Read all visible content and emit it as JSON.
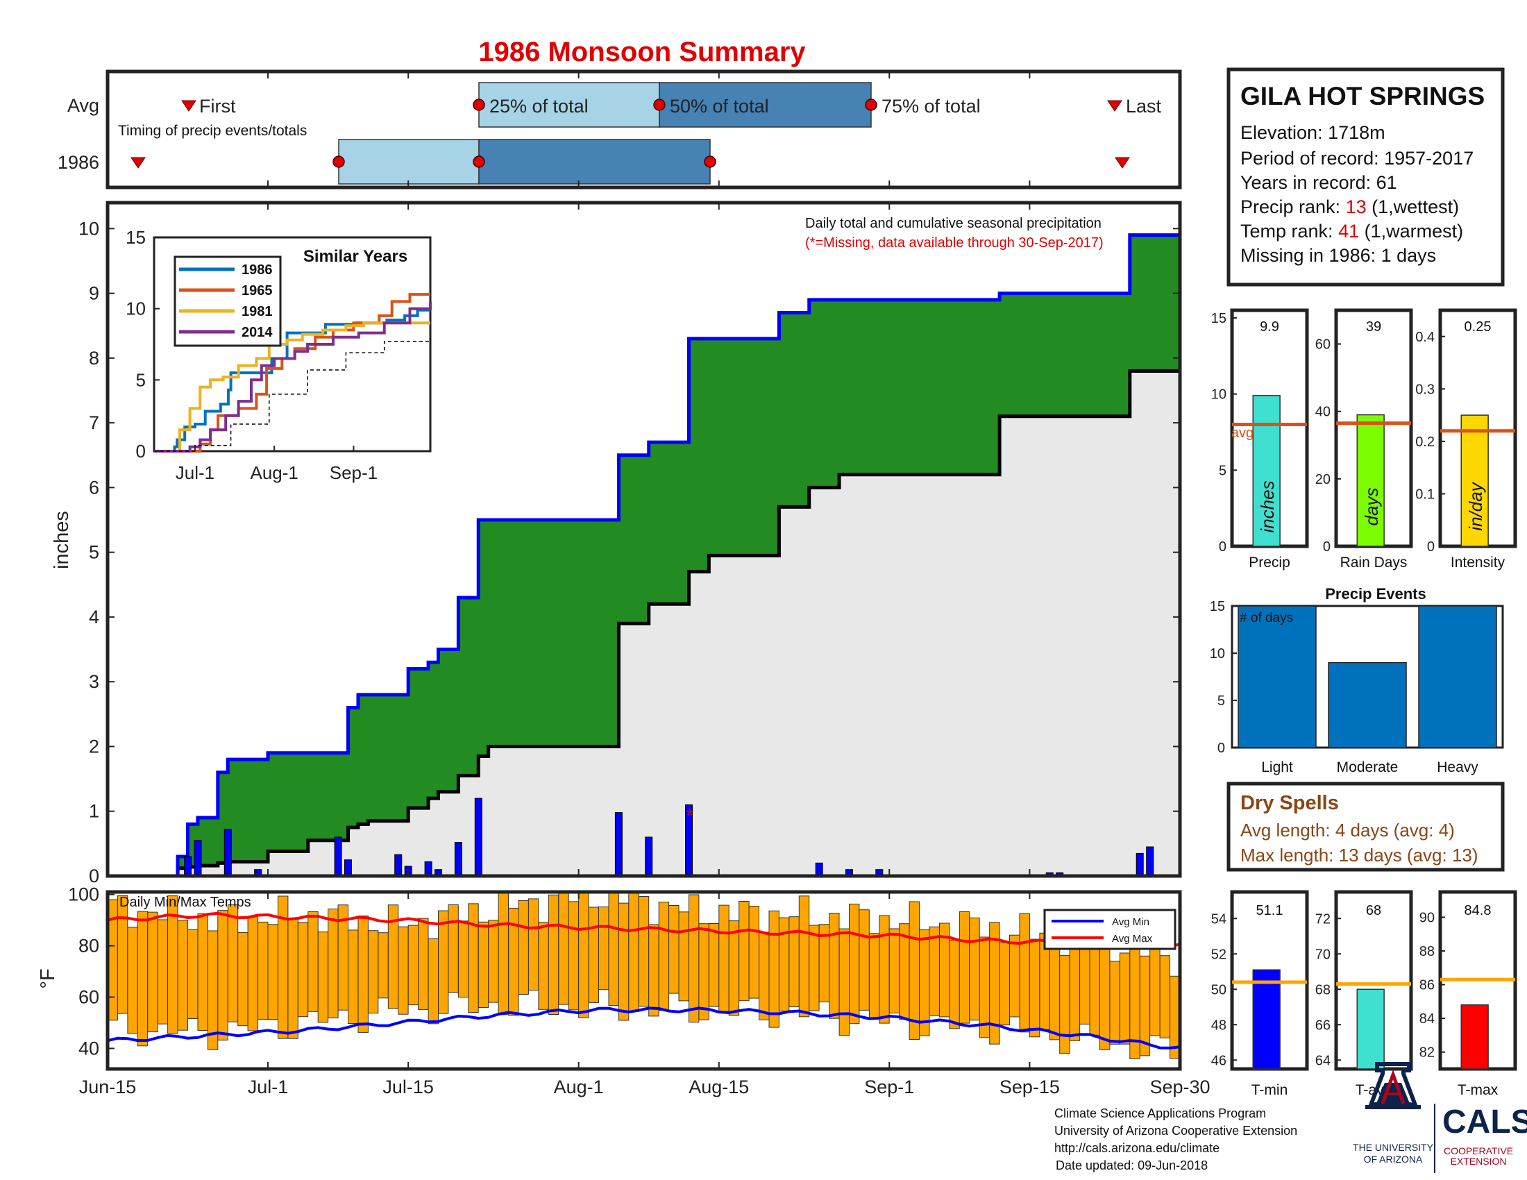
{
  "title": "1986 Monsoon Summary",
  "station": {
    "name": "GILA HOT SPRINGS",
    "elevation_label": "Elevation: 1718m",
    "period_label": "Period of record: 1957-2017",
    "years_label": "Years in record: 61",
    "precip_rank_prefix": "Precip rank: ",
    "precip_rank_value": "13",
    "precip_rank_suffix": " (1,wettest)",
    "temp_rank_prefix": "Temp rank: ",
    "temp_rank_value": "41",
    "temp_rank_suffix": " (1,warmest)",
    "missing_label": "Missing in 1986: 1 days"
  },
  "timing": {
    "row_avg": "Avg",
    "row_year": "1986",
    "first": "First",
    "last": "Last",
    "p25": "25% of total",
    "p50": "50% of total",
    "p75": "75% of total",
    "note": "Timing of precip events/totals"
  },
  "main": {
    "ylabel": "inches",
    "note": "Daily total and cumulative seasonal precipitation",
    "missing_note": "(*=Missing, data available through 30-Sep-2017)",
    "missing_marker": "*"
  },
  "inset": {
    "title": "Similar Years",
    "legend": [
      "1986",
      "1965",
      "1981",
      "2014"
    ]
  },
  "temps": {
    "ylabel": "°F",
    "title": "Daily Min/Max Temps",
    "legend_min": "Avg Min",
    "legend_max": "Avg Max"
  },
  "xticks": [
    "Jun-15",
    "Jul-1",
    "Jul-15",
    "Aug-1",
    "Aug-15",
    "Sep-1",
    "Sep-15",
    "Sep-30"
  ],
  "stat_bars": {
    "precip_label": "Precip",
    "precip_value": "9.9",
    "precip_unit": "inches",
    "days_label": "Rain Days",
    "days_value": "39",
    "days_unit": "days",
    "int_label": "Intensity",
    "int_value": "0.25",
    "int_unit": "in/day",
    "avg_label": "avg"
  },
  "events": {
    "title": "Precip Events",
    "ylabel_inside": "# of days",
    "categories": [
      "Light",
      "Moderate",
      "Heavy"
    ]
  },
  "dry_spells": {
    "title": "Dry Spells",
    "avg_length": "Avg length: 4 days (avg: 4)",
    "max_length": "Max length: 13 days (avg: 13)"
  },
  "temp_bars": {
    "tmin_label": "T-min",
    "tmin_value": "51.1",
    "tavg_label": "T-avg",
    "tavg_value": "68",
    "tmax_label": "T-max",
    "tmax_value": "84.8"
  },
  "footer": {
    "line1": "Climate Science Applications Program",
    "line2": "University of Arizona Cooperative Extension",
    "line3": "http://cals.arizona.edu/climate",
    "line4": "Date updated: 09-Jun-2018",
    "ua_line1": "THE UNIVERSITY",
    "ua_line2": "OF ARIZONA",
    "cals": "CALS",
    "cals_sub1": "COOPERATIVE",
    "cals_sub2": "EXTENSION"
  },
  "colors": {
    "title": "#e00000",
    "green": "#228b22",
    "blue": "#0000ff",
    "orange": "#ffa500",
    "avg_line": "#d95319",
    "light_blue": "#a6d3e6",
    "mid_blue": "#4682b4",
    "event_blue": "#0072bd"
  },
  "chart_data": [
    {
      "type": "line",
      "name": "cumulative precipitation 1986 vs average",
      "ylabel": "inches",
      "ylim": [
        0,
        10.4
      ],
      "x_dates": [
        "Jun-15",
        "Jun-22",
        "Jun-23",
        "Jun-24",
        "Jun-26",
        "Jun-27",
        "Jul-1",
        "Jul-5",
        "Jul-9",
        "Jul-10",
        "Jul-11",
        "Jul-15",
        "Jul-17",
        "Jul-18",
        "Jul-20",
        "Jul-22",
        "Jul-23",
        "Aug-5",
        "Aug-8",
        "Aug-12",
        "Aug-14",
        "Aug-21",
        "Aug-24",
        "Aug-27",
        "Sep-12",
        "Sep-25",
        "Sep-30"
      ],
      "series": [
        {
          "name": "1986 cumulative",
          "values": [
            0,
            0.3,
            0.8,
            0.9,
            1.6,
            1.8,
            1.9,
            1.9,
            2.6,
            2.8,
            2.8,
            3.2,
            3.3,
            3.5,
            4.3,
            5.5,
            5.5,
            6.5,
            6.7,
            8.3,
            8.3,
            8.7,
            8.9,
            8.9,
            9.0,
            9.9,
            9.9
          ]
        },
        {
          "name": "average cumulative",
          "values": [
            0,
            0.12,
            0.14,
            0.16,
            0.2,
            0.22,
            0.38,
            0.55,
            0.75,
            0.8,
            0.85,
            1.05,
            1.2,
            1.3,
            1.55,
            1.85,
            2.0,
            3.9,
            4.2,
            4.7,
            4.95,
            5.7,
            6.0,
            6.2,
            7.1,
            7.8,
            7.9
          ]
        }
      ]
    },
    {
      "type": "bar",
      "name": "daily precipitation 1986",
      "x": [
        "Jun-23",
        "Jun-24",
        "Jun-27",
        "Jun-30",
        "Jul-8",
        "Jul-9",
        "Jul-14",
        "Jul-15",
        "Jul-17",
        "Jul-18",
        "Jul-20",
        "Jul-22",
        "Aug-5",
        "Aug-8",
        "Aug-12",
        "Aug-25",
        "Aug-28",
        "Aug-31",
        "Sep-17",
        "Sep-18",
        "Sep-26",
        "Sep-27"
      ],
      "values": [
        0.3,
        0.55,
        0.72,
        0.1,
        0.6,
        0.25,
        0.33,
        0.15,
        0.22,
        0.1,
        0.52,
        1.2,
        0.98,
        0.6,
        1.1,
        0.2,
        0.1,
        0.1,
        0.05,
        0.05,
        0.35,
        0.45
      ]
    },
    {
      "type": "line",
      "name": "Similar Years",
      "xticks": [
        "Jul-1",
        "Aug-1",
        "Sep-1"
      ],
      "ylim": [
        0,
        15
      ],
      "series": [
        {
          "name": "1986",
          "x_days": [
            0,
            8,
            9,
            12,
            16,
            20,
            26,
            29,
            30,
            37,
            46,
            52,
            60,
            67,
            72,
            79,
            85,
            91,
            98,
            103,
            108
          ],
          "values": [
            0,
            0.3,
            0.8,
            1.7,
            1.9,
            2.8,
            3.3,
            4.3,
            5.5,
            5.5,
            6.5,
            8.3,
            8.3,
            8.9,
            8.9,
            9.0,
            9.0,
            9.2,
            9.5,
            9.9,
            9.9
          ]
        },
        {
          "name": "1965",
          "x_days": [
            0,
            18,
            22,
            25,
            33,
            40,
            44,
            50,
            55,
            63,
            70,
            78,
            88,
            93,
            100,
            108
          ],
          "values": [
            0,
            0.5,
            1.5,
            2.5,
            3.0,
            4.0,
            5.8,
            6.5,
            7.2,
            8.0,
            8.5,
            9.0,
            9.5,
            10.5,
            11.0,
            11.0
          ]
        },
        {
          "name": "1981",
          "x_days": [
            0,
            10,
            14,
            18,
            22,
            27,
            33,
            40,
            45,
            52,
            58,
            66,
            75,
            82,
            90,
            108
          ],
          "values": [
            0,
            1.5,
            3.0,
            4.5,
            5.0,
            5.2,
            6.0,
            6.5,
            7.5,
            7.8,
            8.2,
            8.5,
            8.8,
            9.0,
            9.0,
            9.0
          ]
        },
        {
          "name": "2014",
          "x_days": [
            0,
            14,
            18,
            22,
            28,
            33,
            38,
            42,
            47,
            55,
            60,
            70,
            80,
            90,
            100,
            108
          ],
          "values": [
            0,
            0.3,
            0.8,
            1.5,
            2.5,
            3.5,
            5.0,
            6.0,
            6.5,
            7.0,
            7.5,
            8.0,
            8.3,
            9.0,
            10.0,
            10.5
          ]
        },
        {
          "name": "average",
          "x_days": [
            0,
            16,
            30,
            45,
            60,
            75,
            90,
            108
          ],
          "values": [
            0,
            0.4,
            1.9,
            4.0,
            5.7,
            6.9,
            7.7,
            7.9
          ]
        }
      ]
    },
    {
      "type": "bar",
      "name": "Daily Min/Max Temps",
      "ylabel": "°F",
      "ylim": [
        32,
        101
      ],
      "yticks": [
        40,
        60,
        80,
        100
      ],
      "avg_min": [
        43,
        45,
        47,
        50,
        53,
        55,
        55,
        54,
        52,
        49,
        45,
        40
      ],
      "avg_max": [
        90,
        92,
        91,
        90,
        88,
        87,
        86,
        85,
        84,
        82,
        81,
        80
      ],
      "daily_low_sample": [
        48,
        46,
        50,
        55,
        57,
        56,
        55,
        54,
        50,
        48,
        43,
        38
      ],
      "daily_high_sample": [
        95,
        90,
        92,
        88,
        95,
        100,
        93,
        92,
        90,
        87,
        82,
        75
      ]
    },
    {
      "type": "bar",
      "name": "seasonal stats",
      "categories": [
        "Precip",
        "Rain Days",
        "Intensity"
      ],
      "values": [
        9.9,
        39,
        0.25
      ],
      "averages": [
        8.0,
        36.5,
        0.22
      ],
      "ylims": [
        [
          0,
          15.5
        ],
        [
          0,
          70
        ],
        [
          0,
          0.45
        ]
      ],
      "yticks": [
        [
          0,
          5,
          10,
          15
        ],
        [
          0,
          20,
          40,
          60
        ],
        [
          0,
          0.1,
          0.2,
          0.3,
          0.4
        ]
      ]
    },
    {
      "type": "bar",
      "name": "Precip Events",
      "categories": [
        "Light",
        "Moderate",
        "Heavy"
      ],
      "values": [
        15,
        9,
        15
      ],
      "ylim": [
        0,
        15
      ],
      "yticks": [
        0,
        5,
        10,
        15
      ]
    },
    {
      "type": "bar",
      "name": "seasonal temperature",
      "categories": [
        "T-min",
        "T-avg",
        "T-max"
      ],
      "values": [
        51.1,
        68,
        84.8
      ],
      "averages": [
        50.4,
        68.3,
        86.3
      ],
      "ylims": [
        [
          45.5,
          55.5
        ],
        [
          63.5,
          73.5
        ],
        [
          81,
          91.5
        ]
      ],
      "yticks": [
        [
          46,
          48,
          50,
          52,
          54
        ],
        [
          64,
          66,
          68,
          70,
          72
        ],
        [
          82,
          84,
          86,
          88,
          90
        ]
      ]
    }
  ]
}
